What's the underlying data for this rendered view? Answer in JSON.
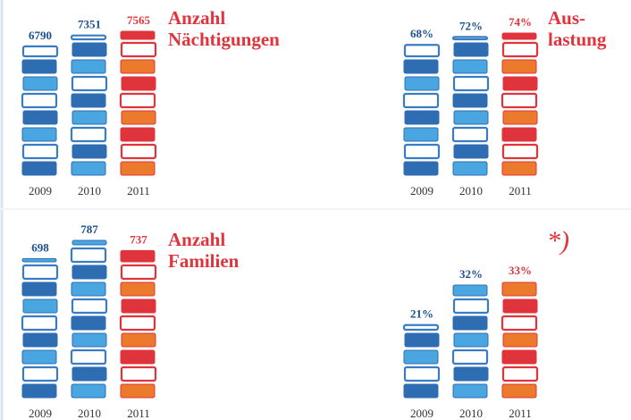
{
  "chart_data": [
    {
      "type": "bar",
      "title": [
        "Anzahl",
        "Nächtigungen"
      ],
      "categories": [
        "2009",
        "2010",
        "2011"
      ],
      "values": [
        6790,
        7351,
        7565
      ],
      "colors": [
        "#2f6db3",
        "#2f6db3",
        "#e0343c"
      ]
    },
    {
      "type": "bar",
      "title": [
        "Aus-",
        "lastung"
      ],
      "categories": [
        "2009",
        "2010",
        "2011"
      ],
      "values": [
        68,
        72,
        74
      ],
      "value_labels": [
        "68%",
        "72%",
        "74%"
      ],
      "colors": [
        "#2f6db3",
        "#2f6db3",
        "#e0343c"
      ]
    },
    {
      "type": "bar",
      "title": [
        "Anzahl",
        "Familien"
      ],
      "categories": [
        "2009",
        "2010",
        "2011"
      ],
      "values": [
        698,
        787,
        737
      ],
      "colors": [
        "#2f6db3",
        "#2f6db3",
        "#e0343c"
      ]
    },
    {
      "type": "bar",
      "annotation": "*)",
      "categories": [
        "2009",
        "2010",
        "2011"
      ],
      "values": [
        21,
        32,
        33
      ],
      "value_labels": [
        "21%",
        "32%",
        "33%"
      ],
      "colors": [
        "#2f6db3",
        "#2f6db3",
        "#e0343c"
      ]
    }
  ]
}
